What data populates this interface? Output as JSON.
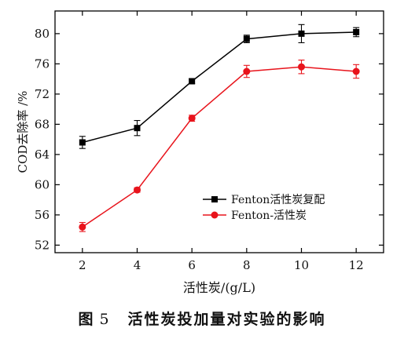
{
  "chart_data": {
    "type": "line",
    "xlabel": "活性炭/(g/L)",
    "ylabel": "COD去除率 /%",
    "x": [
      2,
      4,
      6,
      8,
      10,
      12
    ],
    "xlim": [
      1,
      13
    ],
    "ylim": [
      51,
      83
    ],
    "xticks": [
      2,
      4,
      6,
      8,
      10,
      12
    ],
    "yticks": [
      52,
      56,
      60,
      64,
      68,
      72,
      76,
      80
    ],
    "grid": false,
    "legend_position": "bottom-right",
    "series": [
      {
        "name": "Fenton活性炭复配",
        "color": "#000000",
        "marker": "square",
        "values": [
          65.6,
          67.5,
          73.7,
          79.3,
          80.0,
          80.2
        ],
        "errors": [
          0.8,
          1.0,
          0.3,
          0.5,
          1.2,
          0.6
        ]
      },
      {
        "name": "Fenton-活性炭",
        "color": "#e8141c",
        "marker": "circle",
        "values": [
          54.4,
          59.3,
          68.8,
          75.0,
          75.6,
          75.0
        ],
        "errors": [
          0.6,
          0.3,
          0.4,
          0.8,
          0.9,
          0.9
        ]
      }
    ]
  },
  "caption": {
    "prefix": "图",
    "number": "5",
    "text": "活性炭投加量对实验的影响"
  }
}
